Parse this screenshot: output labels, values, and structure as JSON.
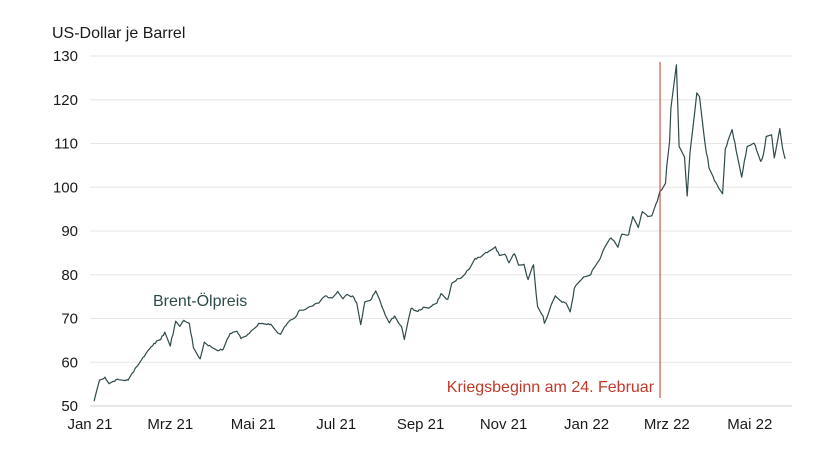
{
  "chart_data": {
    "type": "line",
    "ylabel": "US-Dollar je Barrel",
    "ylim": [
      50,
      130
    ],
    "yticks": [
      "50",
      "60",
      "70",
      "80",
      "90",
      "100",
      "110",
      "120",
      "130"
    ],
    "x_axis": {
      "start": "2021-01-01",
      "end": "2022-06-01",
      "tick_labels": [
        {
          "label": "Jan 21",
          "date": "2021-01-01"
        },
        {
          "label": "Mrz 21",
          "date": "2021-03-01"
        },
        {
          "label": "Mai 21",
          "date": "2021-05-01"
        },
        {
          "label": "Jul 21",
          "date": "2021-07-01"
        },
        {
          "label": "Sep 21",
          "date": "2021-09-01"
        },
        {
          "label": "Nov 21",
          "date": "2021-11-01"
        },
        {
          "label": "Jan 22",
          "date": "2022-01-01"
        },
        {
          "label": "Mrz 22",
          "date": "2022-03-01"
        },
        {
          "label": "Mai 22",
          "date": "2022-05-01"
        }
      ]
    },
    "grid": "horizontal",
    "series": [
      {
        "name": "Brent-Ölpreis",
        "color": "#2f4a4a",
        "points": [
          [
            "2021-01-04",
            51.1
          ],
          [
            "2021-01-06",
            53.6
          ],
          [
            "2021-01-08",
            55.9
          ],
          [
            "2021-01-12",
            56.6
          ],
          [
            "2021-01-15",
            55.1
          ],
          [
            "2021-01-20",
            56.0
          ],
          [
            "2021-01-25",
            55.9
          ],
          [
            "2021-01-29",
            55.9
          ],
          [
            "2021-02-03",
            58.5
          ],
          [
            "2021-02-08",
            60.6
          ],
          [
            "2021-02-12",
            62.4
          ],
          [
            "2021-02-17",
            64.3
          ],
          [
            "2021-02-22",
            65.2
          ],
          [
            "2021-02-25",
            66.9
          ],
          [
            "2021-03-01",
            63.7
          ],
          [
            "2021-03-05",
            69.4
          ],
          [
            "2021-03-08",
            68.2
          ],
          [
            "2021-03-11",
            69.6
          ],
          [
            "2021-03-15",
            68.9
          ],
          [
            "2021-03-18",
            63.3
          ],
          [
            "2021-03-23",
            60.8
          ],
          [
            "2021-03-26",
            64.6
          ],
          [
            "2021-03-31",
            63.5
          ],
          [
            "2021-04-06",
            62.7
          ],
          [
            "2021-04-09",
            63.0
          ],
          [
            "2021-04-14",
            66.6
          ],
          [
            "2021-04-19",
            67.1
          ],
          [
            "2021-04-22",
            65.4
          ],
          [
            "2021-04-27",
            66.4
          ],
          [
            "2021-04-30",
            67.3
          ],
          [
            "2021-05-05",
            68.9
          ],
          [
            "2021-05-11",
            68.6
          ],
          [
            "2021-05-14",
            68.7
          ],
          [
            "2021-05-19",
            66.7
          ],
          [
            "2021-05-21",
            66.4
          ],
          [
            "2021-05-26",
            68.9
          ],
          [
            "2021-05-28",
            69.6
          ],
          [
            "2021-06-01",
            70.3
          ],
          [
            "2021-06-04",
            71.9
          ],
          [
            "2021-06-09",
            72.2
          ],
          [
            "2021-06-14",
            72.9
          ],
          [
            "2021-06-18",
            73.5
          ],
          [
            "2021-06-23",
            75.2
          ],
          [
            "2021-06-28",
            74.7
          ],
          [
            "2021-07-02",
            76.2
          ],
          [
            "2021-07-06",
            74.5
          ],
          [
            "2021-07-09",
            75.5
          ],
          [
            "2021-07-14",
            74.8
          ],
          [
            "2021-07-16",
            73.6
          ],
          [
            "2021-07-19",
            68.6
          ],
          [
            "2021-07-22",
            73.8
          ],
          [
            "2021-07-27",
            74.5
          ],
          [
            "2021-07-30",
            76.3
          ],
          [
            "2021-08-04",
            72.4
          ],
          [
            "2021-08-09",
            69.0
          ],
          [
            "2021-08-13",
            70.6
          ],
          [
            "2021-08-18",
            68.2
          ],
          [
            "2021-08-20",
            65.2
          ],
          [
            "2021-08-25",
            72.3
          ],
          [
            "2021-08-30",
            71.6
          ],
          [
            "2021-09-03",
            72.6
          ],
          [
            "2021-09-08",
            72.6
          ],
          [
            "2021-09-13",
            73.5
          ],
          [
            "2021-09-16",
            75.7
          ],
          [
            "2021-09-21",
            74.4
          ],
          [
            "2021-09-24",
            78.1
          ],
          [
            "2021-09-28",
            79.1
          ],
          [
            "2021-10-01",
            79.3
          ],
          [
            "2021-10-06",
            81.1
          ],
          [
            "2021-10-11",
            83.7
          ],
          [
            "2021-10-14",
            84.0
          ],
          [
            "2021-10-19",
            85.1
          ],
          [
            "2021-10-22",
            85.5
          ],
          [
            "2021-10-26",
            86.4
          ],
          [
            "2021-10-29",
            84.4
          ],
          [
            "2021-11-02",
            84.7
          ],
          [
            "2021-11-05",
            82.7
          ],
          [
            "2021-11-09",
            84.8
          ],
          [
            "2021-11-12",
            82.2
          ],
          [
            "2021-11-16",
            82.4
          ],
          [
            "2021-11-19",
            78.9
          ],
          [
            "2021-11-23",
            82.3
          ],
          [
            "2021-11-26",
            72.7
          ],
          [
            "2021-11-30",
            70.6
          ],
          [
            "2021-12-01",
            68.9
          ],
          [
            "2021-12-06",
            73.1
          ],
          [
            "2021-12-09",
            75.2
          ],
          [
            "2021-12-14",
            73.7
          ],
          [
            "2021-12-17",
            73.5
          ],
          [
            "2021-12-20",
            71.5
          ],
          [
            "2021-12-23",
            76.9
          ],
          [
            "2021-12-29",
            79.2
          ],
          [
            "2022-01-04",
            80.0
          ],
          [
            "2022-01-07",
            81.8
          ],
          [
            "2022-01-11",
            83.7
          ],
          [
            "2022-01-14",
            86.1
          ],
          [
            "2022-01-19",
            88.4
          ],
          [
            "2022-01-24",
            86.3
          ],
          [
            "2022-01-27",
            89.3
          ],
          [
            "2022-02-01",
            89.2
          ],
          [
            "2022-02-04",
            93.3
          ],
          [
            "2022-02-08",
            90.8
          ],
          [
            "2022-02-11",
            94.4
          ],
          [
            "2022-02-15",
            93.3
          ],
          [
            "2022-02-18",
            93.5
          ],
          [
            "2022-02-22",
            96.8
          ],
          [
            "2022-02-24",
            99.1
          ],
          [
            "2022-02-28",
            100.9
          ],
          [
            "2022-03-01",
            105.0
          ],
          [
            "2022-03-03",
            110.5
          ],
          [
            "2022-03-04",
            118.1
          ],
          [
            "2022-03-08",
            127.98
          ],
          [
            "2022-03-10",
            109.3
          ],
          [
            "2022-03-14",
            106.9
          ],
          [
            "2022-03-16",
            98.0
          ],
          [
            "2022-03-18",
            107.9
          ],
          [
            "2022-03-23",
            121.6
          ],
          [
            "2022-03-25",
            120.7
          ],
          [
            "2022-03-29",
            110.2
          ],
          [
            "2022-04-01",
            104.4
          ],
          [
            "2022-04-06",
            101.1
          ],
          [
            "2022-04-11",
            98.5
          ],
          [
            "2022-04-13",
            108.8
          ],
          [
            "2022-04-18",
            113.2
          ],
          [
            "2022-04-21",
            108.3
          ],
          [
            "2022-04-25",
            102.3
          ],
          [
            "2022-04-29",
            109.3
          ],
          [
            "2022-05-04",
            110.1
          ],
          [
            "2022-05-09",
            105.9
          ],
          [
            "2022-05-11",
            107.5
          ],
          [
            "2022-05-13",
            111.6
          ],
          [
            "2022-05-17",
            112.0
          ],
          [
            "2022-05-19",
            106.7
          ],
          [
            "2022-05-23",
            113.4
          ],
          [
            "2022-05-25",
            109.0
          ],
          [
            "2022-05-27",
            106.5
          ]
        ]
      }
    ],
    "annotations": {
      "series_label": "Brent-Ölpreis",
      "event_date": "2022-02-24",
      "event_label": "Kriegsbeginn am 24. Februar",
      "event_color": "#c0392b"
    }
  }
}
